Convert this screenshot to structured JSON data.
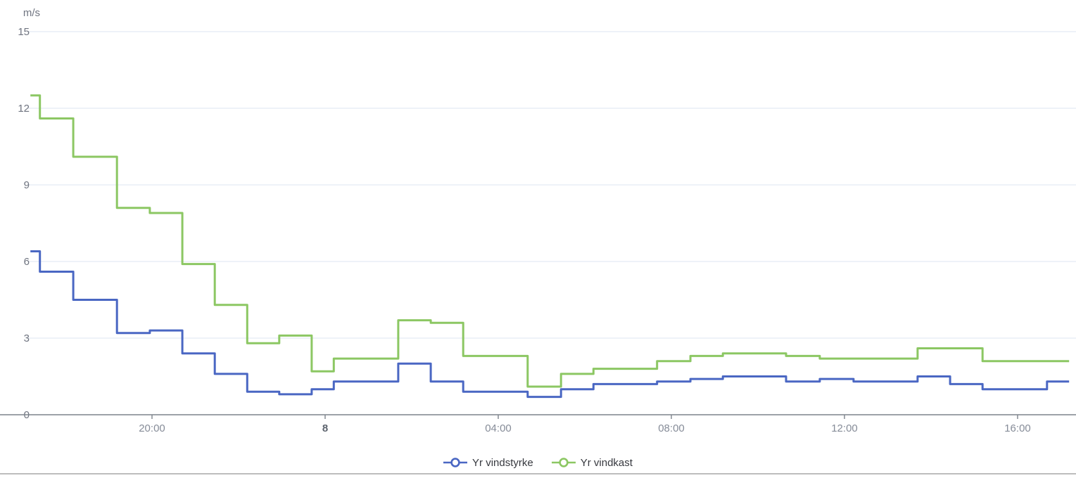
{
  "chart": {
    "unit_label": "m/s"
  },
  "legend": {
    "items": [
      {
        "label": "Yr vindstyrke"
      },
      {
        "label": "Yr vindkast"
      }
    ]
  },
  "colors": {
    "vindstyrke_blue": "#4a67c3",
    "vindkast_green": "#8cc763",
    "gridline": "#e9edf6",
    "axis_line": "#7d838c",
    "tick_label": "#868c98",
    "tick_label_bold": "#5d646e",
    "y_label": "#6f7480",
    "divider": "#bdbdbd"
  },
  "chart_data": {
    "type": "line",
    "step": true,
    "title": "",
    "xlabel": "",
    "ylabel": "m/s",
    "ylim": [
      0,
      15
    ],
    "yticks": [
      0,
      3,
      6,
      9,
      12,
      15
    ],
    "grid": true,
    "legend_position": "bottom-center",
    "x_axis_unit": "hours relative to midnight (00:00 of day 8)",
    "xlim_hours": [
      -6.86,
      17.35
    ],
    "x_data_end_hours": 17.19,
    "xticks": [
      {
        "h": -4,
        "label": "20:00",
        "bold": false
      },
      {
        "h": 0,
        "label": "8",
        "bold": true
      },
      {
        "h": 4,
        "label": "04:00",
        "bold": false
      },
      {
        "h": 8,
        "label": "08:00",
        "bold": false
      },
      {
        "h": 12,
        "label": "12:00",
        "bold": false
      },
      {
        "h": 16,
        "label": "16:00",
        "bold": false
      }
    ],
    "series": [
      {
        "name": "Yr vindstyrke",
        "color": "#4a67c3",
        "steps": [
          [
            -6.81,
            6.4
          ],
          [
            -6.59,
            5.6
          ],
          [
            -5.82,
            4.5
          ],
          [
            -4.81,
            3.2
          ],
          [
            -4.05,
            3.3
          ],
          [
            -3.3,
            2.4
          ],
          [
            -2.55,
            1.6
          ],
          [
            -1.8,
            0.9
          ],
          [
            -1.06,
            0.8
          ],
          [
            -0.31,
            1.0
          ],
          [
            0.2,
            1.3
          ],
          [
            1.69,
            2.0
          ],
          [
            2.44,
            1.3
          ],
          [
            3.19,
            0.9
          ],
          [
            4.68,
            0.7
          ],
          [
            5.45,
            1.0
          ],
          [
            6.2,
            1.2
          ],
          [
            7.67,
            1.3
          ],
          [
            8.44,
            1.4
          ],
          [
            9.19,
            1.5
          ],
          [
            10.65,
            1.3
          ],
          [
            11.43,
            1.4
          ],
          [
            12.21,
            1.3
          ],
          [
            13.69,
            1.5
          ],
          [
            14.44,
            1.2
          ],
          [
            15.19,
            1.0
          ],
          [
            16.68,
            1.3
          ]
        ]
      },
      {
        "name": "Yr vindkast",
        "color": "#8cc763",
        "steps": [
          [
            -6.81,
            12.5
          ],
          [
            -6.59,
            11.6
          ],
          [
            -5.82,
            10.1
          ],
          [
            -4.81,
            8.1
          ],
          [
            -4.05,
            7.9
          ],
          [
            -3.3,
            5.9
          ],
          [
            -2.55,
            4.3
          ],
          [
            -1.8,
            2.8
          ],
          [
            -1.06,
            3.1
          ],
          [
            -0.31,
            1.7
          ],
          [
            0.2,
            2.2
          ],
          [
            1.69,
            3.7
          ],
          [
            2.44,
            3.6
          ],
          [
            3.19,
            2.3
          ],
          [
            4.68,
            1.1
          ],
          [
            5.45,
            1.6
          ],
          [
            6.2,
            1.8
          ],
          [
            7.67,
            2.1
          ],
          [
            8.44,
            2.3
          ],
          [
            9.19,
            2.4
          ],
          [
            10.65,
            2.3
          ],
          [
            11.43,
            2.2
          ],
          [
            13.69,
            2.6
          ],
          [
            15.19,
            2.1
          ]
        ]
      }
    ]
  }
}
